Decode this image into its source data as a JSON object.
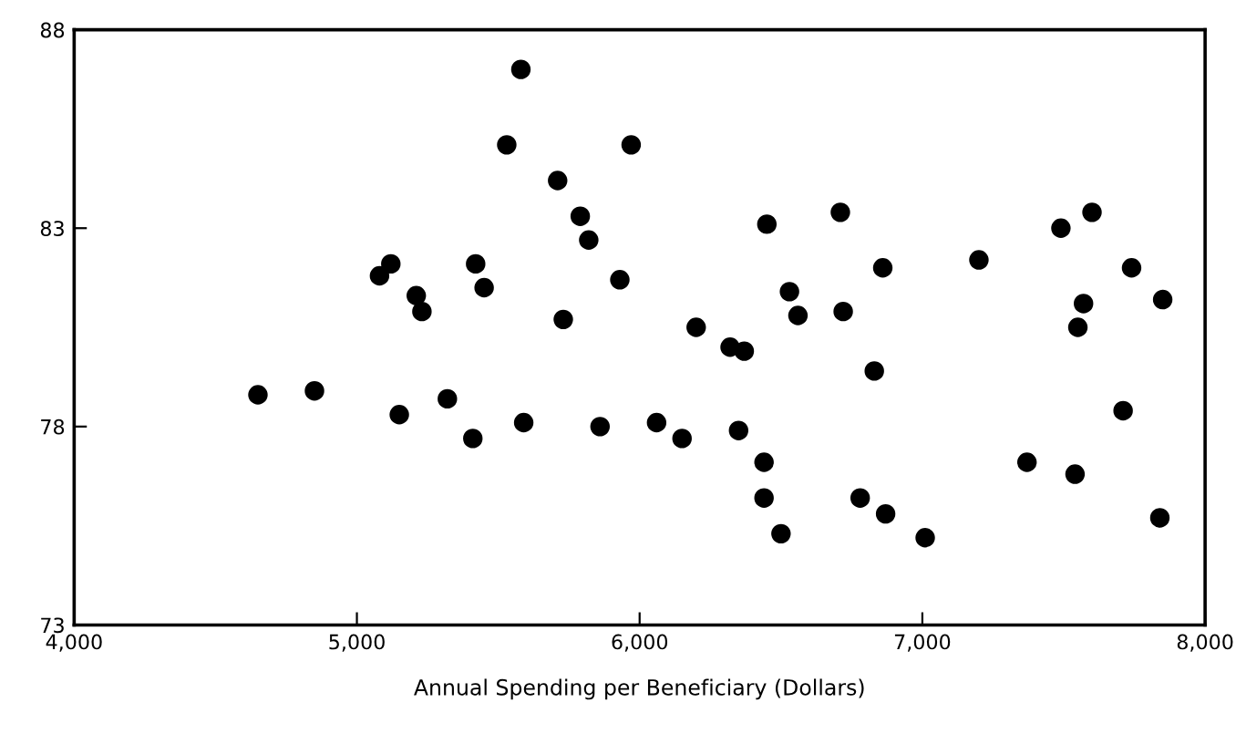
{
  "chart_data": {
    "type": "scatter",
    "xlabel": "Annual Spending per Beneficiary (Dollars)",
    "xlim": [
      4000,
      8000
    ],
    "xticks": [
      {
        "value": 4000,
        "label": "4,000"
      },
      {
        "value": 5000,
        "label": "5,000"
      },
      {
        "value": 6000,
        "label": "6,000"
      },
      {
        "value": 7000,
        "label": "7,000"
      },
      {
        "value": 8000,
        "label": "8,000"
      }
    ],
    "ylim": [
      73,
      88
    ],
    "yticks": [
      73,
      78,
      83,
      88
    ],
    "grid": false,
    "legend": false,
    "marker": "circle",
    "series": [
      {
        "color": "#000000",
        "x": [
          5580,
          5530,
          5970,
          5710,
          5790,
          5820,
          5120,
          5080,
          5420,
          5450,
          5210,
          5230,
          5930,
          5730,
          4650,
          4850,
          5150,
          5320,
          5410,
          5590,
          5860,
          6060,
          6450,
          6710,
          7200,
          7490,
          7600,
          7740,
          6860,
          6530,
          6560,
          6720,
          7570,
          7850,
          7550,
          6200,
          6320,
          6370,
          6830,
          6150,
          6350,
          6440,
          6440,
          6500,
          6780,
          6870,
          7010,
          7370,
          7540,
          7710,
          7840
        ],
        "values": [
          87.0,
          85.1,
          85.1,
          84.2,
          83.3,
          82.7,
          82.1,
          81.8,
          82.1,
          81.5,
          81.3,
          80.9,
          81.7,
          80.7,
          78.8,
          78.9,
          78.3,
          78.7,
          77.7,
          78.1,
          78.0,
          78.1,
          83.1,
          83.4,
          82.2,
          83.0,
          83.4,
          82.0,
          82.0,
          81.4,
          80.8,
          80.9,
          81.1,
          81.2,
          80.5,
          80.5,
          80.0,
          79.9,
          79.4,
          77.7,
          77.9,
          77.1,
          76.2,
          75.3,
          76.2,
          75.8,
          75.2,
          77.1,
          76.8,
          78.4,
          75.7
        ]
      }
    ]
  }
}
